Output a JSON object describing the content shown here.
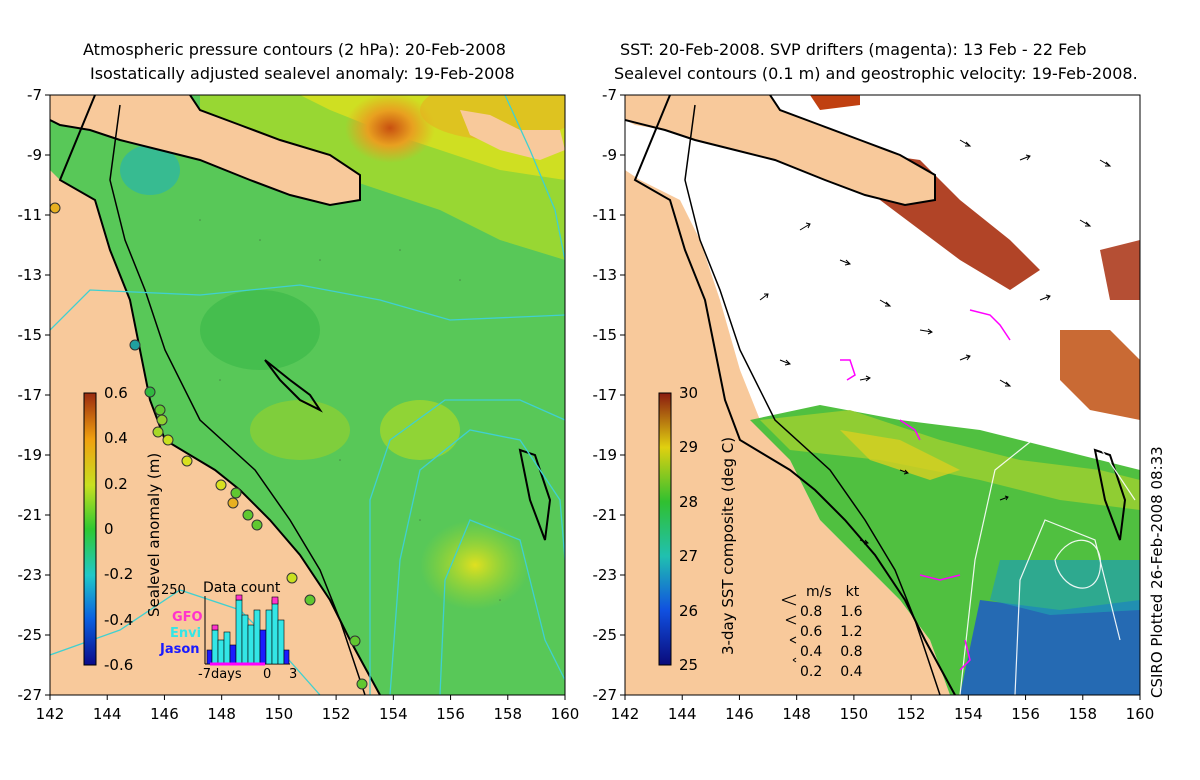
{
  "left_panel": {
    "title_line1": "Atmospheric pressure contours (2 hPa): 20-Feb-2008",
    "title_line2": "Isostatically adjusted sealevel anomaly: 19-Feb-2008",
    "colorbar_label": "Sealevel anomaly (m)",
    "colorbar_ticks": [
      "0.6",
      "0.4",
      "0.2",
      "0",
      "-0.2",
      "-0.4",
      "-0.6"
    ],
    "inset": {
      "title": "Data count",
      "y_max_label": "250",
      "legend": [
        {
          "name": "GFO",
          "color": "#ff33cc"
        },
        {
          "name": "Envi",
          "color": "#33e6e6"
        },
        {
          "name": "Jason",
          "color": "#1a1aff"
        }
      ],
      "x_labels": [
        "-7days",
        "0",
        "3"
      ]
    }
  },
  "right_panel": {
    "title_line1": "SST: 20-Feb-2008. SVP drifters (magenta): 13 Feb - 22 Feb",
    "title_line2": "Sealevel contours (0.1 m) and geostrophic velocity: 19-Feb-2008.",
    "colorbar_label": "3-day SST composite (deg C)",
    "colorbar_ticks": [
      "30",
      "29",
      "28",
      "27",
      "26",
      "25"
    ],
    "velocity_legend": {
      "headers": [
        "m/s",
        "kt"
      ],
      "rows": [
        [
          "0.8",
          "1.6"
        ],
        [
          "0.6",
          "1.2"
        ],
        [
          "0.4",
          "0.8"
        ],
        [
          "0.2",
          "0.4"
        ]
      ]
    }
  },
  "axes": {
    "y_ticks": [
      "-7",
      "-9",
      "-11",
      "-13",
      "-15",
      "-17",
      "-19",
      "-21",
      "-23",
      "-25",
      "-27"
    ],
    "x_ticks": [
      "142",
      "144",
      "146",
      "148",
      "150",
      "152",
      "154",
      "156",
      "158",
      "160"
    ]
  },
  "stamp": "CSIRO Plotted 26-Feb-2008 08:33",
  "colors": {
    "land": "#f8c99b",
    "coast": "#000000",
    "contour": "#40d0d0"
  }
}
